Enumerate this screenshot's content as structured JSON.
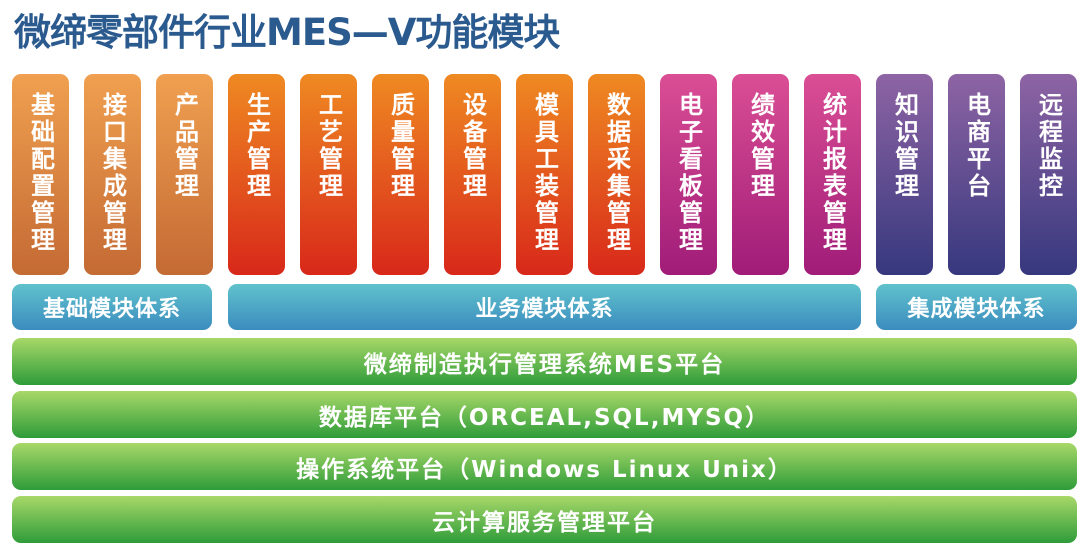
{
  "title": "微缔零部件行业MES—V功能模块",
  "modules": [
    {
      "label": "基础配置管理",
      "group": "basic"
    },
    {
      "label": "接口集成管理",
      "group": "basic"
    },
    {
      "label": "产品管理",
      "group": "basic"
    },
    {
      "label": "生产管理",
      "group": "business"
    },
    {
      "label": "工艺管理",
      "group": "business"
    },
    {
      "label": "质量管理",
      "group": "business"
    },
    {
      "label": "设备管理",
      "group": "business"
    },
    {
      "label": "模具工装管理",
      "group": "business"
    },
    {
      "label": "数据采集管理",
      "group": "business"
    },
    {
      "label": "电子看板管理",
      "group": "business"
    },
    {
      "label": "绩效管理",
      "group": "business"
    },
    {
      "label": "统计报表管理",
      "group": "business"
    },
    {
      "label": "知识管理",
      "group": "integration"
    },
    {
      "label": "电商平台",
      "group": "integration"
    },
    {
      "label": "远程监控",
      "group": "integration"
    }
  ],
  "tiers": {
    "basic": "基础模块体系",
    "business": "业务模块体系",
    "integration": "集成模块体系"
  },
  "platforms": [
    "微缔制造执行管理系统MES平台",
    "数据库平台（ORCEAL,SQL,MYSQ）",
    "操作系统平台（Windows Linux Unix）",
    "云计算服务管理平台"
  ],
  "colors": {
    "title": "#2a5a8e",
    "basic": "#e08840",
    "business_orange_red": "#e0501e",
    "business_magenta": "#c03488",
    "integration": "#5a4a90",
    "tier": "#4aa6c6",
    "platform": "#5cb848"
  }
}
